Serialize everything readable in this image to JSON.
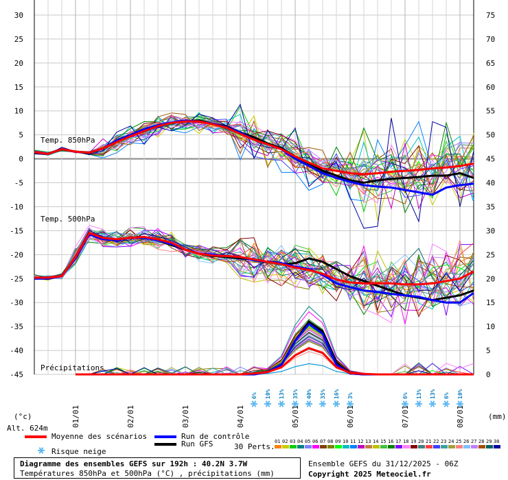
{
  "chart_data": {
    "type": "line",
    "title": "Diagramme des ensembles GEFS sur 192h : 40.2N 3.7W",
    "subtitle": "Températures 850hPa et 500hPa (°C) , précipitations (mm)",
    "run_info": "Ensemble GEFS du 31/12/2025 - 06Z",
    "copyright": "Copyright 2025 Meteociel.fr",
    "altitude": "Alt. 624m",
    "left_axis_unit": "(°c)",
    "right_axis_unit": "(mm)",
    "left_axis": {
      "range": [
        -45,
        30
      ],
      "ticks": [
        "30",
        "25",
        "20",
        "15",
        "10",
        "5",
        "0",
        "-5",
        "-10",
        "-15",
        "-20",
        "-25",
        "-30",
        "-35",
        "-40",
        "-45"
      ]
    },
    "right_axis": {
      "range": [
        0,
        75
      ],
      "ticks": [
        "75",
        "70",
        "65",
        "60",
        "55",
        "50",
        "45",
        "40",
        "35",
        "30",
        "25",
        "20",
        "15",
        "10",
        "5",
        "0"
      ]
    },
    "x_axis": {
      "hours_range": [
        0,
        192
      ],
      "day_labels": [
        "01/01",
        "02/01",
        "03/01",
        "04/01",
        "05/01",
        "06/01",
        "07/01",
        "08/01"
      ],
      "day_hours": [
        18,
        42,
        66,
        90,
        114,
        138,
        162,
        186
      ]
    },
    "panel_labels": {
      "t850": "Temp. 850hPa",
      "t500": "Temp. 500hPa",
      "precip": "Précipitations"
    },
    "snow_risk": {
      "hours": [
        96,
        102,
        108,
        114,
        120,
        126,
        132,
        138,
        144,
        162,
        168,
        174,
        180,
        186
      ],
      "labels": [
        "6%",
        "10%",
        "13%",
        "35%",
        "40%",
        "35%",
        "16%",
        "3%",
        "",
        "6%",
        "13%",
        "13%",
        "6%",
        "10%"
      ]
    },
    "grid": true,
    "series": [
      {
        "name": "Moyenne des scénarios",
        "color": "#ff0000",
        "hours": [
          0,
          6,
          12,
          18,
          24,
          30,
          36,
          42,
          48,
          54,
          60,
          66,
          72,
          78,
          84,
          90,
          96,
          102,
          108,
          114,
          120,
          126,
          132,
          138,
          144,
          150,
          156,
          162,
          168,
          174,
          180,
          186,
          192
        ],
        "t850": [
          1.4,
          1.0,
          2.0,
          1.5,
          1.3,
          2.2,
          3.5,
          4.7,
          5.8,
          6.8,
          7.5,
          7.8,
          7.8,
          7.2,
          6.5,
          5.2,
          4.0,
          3.0,
          2.0,
          0.5,
          -0.8,
          -2.0,
          -2.5,
          -3.0,
          -3.2,
          -3.0,
          -2.7,
          -2.5,
          -2.3,
          -2.0,
          -1.8,
          -1.5,
          -1.0
        ],
        "t500": [
          -24.8,
          -24.8,
          -24.5,
          -20.5,
          -15.5,
          -16.5,
          -16.8,
          -16.5,
          -16.3,
          -16.8,
          -17.5,
          -19.0,
          -19.8,
          -20.2,
          -20.3,
          -20.5,
          -21.0,
          -21.5,
          -22.0,
          -22.7,
          -23.2,
          -24.0,
          -25.2,
          -25.8,
          -26.0,
          -26.0,
          -26.0,
          -26.2,
          -26.2,
          -26.0,
          -25.5,
          -25.0,
          -23.5
        ],
        "precip": [
          null,
          null,
          null,
          0,
          0,
          0,
          0,
          0,
          0,
          0,
          0,
          0,
          0,
          0,
          0,
          0,
          0.2,
          0.5,
          1.5,
          4.0,
          5.5,
          4.5,
          1.5,
          0.3,
          0.1,
          0,
          0,
          0,
          0,
          0,
          0,
          0,
          0
        ]
      },
      {
        "name": "Run de contrôle",
        "color": "#0000ff",
        "hours": [
          0,
          6,
          12,
          18,
          24,
          30,
          36,
          42,
          48,
          54,
          60,
          66,
          72,
          78,
          84,
          90,
          96,
          102,
          108,
          114,
          120,
          126,
          132,
          138,
          144,
          150,
          156,
          162,
          168,
          174,
          180,
          186,
          192
        ],
        "t850": [
          1.3,
          1.0,
          2.0,
          1.5,
          1.3,
          2.2,
          3.8,
          5.0,
          6.2,
          7.0,
          7.6,
          8.0,
          7.8,
          7.3,
          6.6,
          5.5,
          4.0,
          3.0,
          2.0,
          0.0,
          -1.5,
          -3.0,
          -4.0,
          -4.8,
          -5.5,
          -5.8,
          -6.0,
          -6.5,
          -7.0,
          -7.5,
          -6.0,
          -5.5,
          -5.2
        ],
        "t500": [
          -25.0,
          -25.0,
          -24.5,
          -20.8,
          -15.8,
          -16.8,
          -17.0,
          -16.5,
          -16.5,
          -17.0,
          -17.8,
          -19.0,
          -19.8,
          -20.0,
          -20.3,
          -20.5,
          -21.2,
          -21.5,
          -21.8,
          -22.5,
          -23.0,
          -24.2,
          -26.0,
          -26.8,
          -27.5,
          -27.8,
          -28.2,
          -28.5,
          -28.8,
          -29.5,
          -30.0,
          -30.0,
          -28.0
        ],
        "precip": [
          null,
          null,
          null,
          0,
          0,
          0,
          0,
          0,
          0,
          0,
          0,
          0,
          0,
          0,
          0,
          0,
          0,
          0.5,
          2.0,
          7.0,
          10.5,
          8.5,
          2.0,
          0.2,
          0,
          0,
          0,
          0,
          0,
          0,
          0,
          0,
          0
        ]
      },
      {
        "name": "Run GFS",
        "color": "#000000",
        "hours": [
          0,
          6,
          12,
          18,
          24,
          30,
          36,
          42,
          48,
          54,
          60,
          66,
          72,
          78,
          84,
          90,
          96,
          102,
          108,
          114,
          120,
          126,
          132,
          138,
          144,
          150,
          156,
          162,
          168,
          174,
          180,
          186,
          192
        ],
        "t850": [
          1.2,
          1.0,
          2.0,
          1.5,
          1.2,
          2.2,
          3.5,
          4.8,
          6.0,
          7.0,
          7.5,
          7.8,
          8.0,
          7.3,
          6.8,
          5.5,
          4.5,
          3.2,
          2.2,
          0.5,
          -1.0,
          -2.5,
          -3.5,
          -4.5,
          -5.0,
          -4.5,
          -4.2,
          -4.0,
          -3.8,
          -3.5,
          -3.5,
          -3.0,
          -4.0
        ],
        "t500": [
          -25.0,
          -25.0,
          -24.5,
          -20.5,
          -15.5,
          -16.5,
          -17.0,
          -16.5,
          -16.3,
          -17.0,
          -18.0,
          -19.0,
          -19.8,
          -20.3,
          -20.5,
          -20.8,
          -21.0,
          -21.5,
          -22.0,
          -21.8,
          -20.8,
          -21.5,
          -23.0,
          -24.5,
          -25.5,
          -26.5,
          -27.5,
          -28.5,
          -29.0,
          -29.5,
          -29.0,
          -28.5,
          -27.5
        ],
        "precip": [
          null,
          null,
          null,
          0,
          0,
          0,
          0,
          0,
          0,
          0,
          0,
          0,
          0,
          0,
          0,
          0,
          0,
          0.5,
          2.0,
          7.0,
          11.0,
          9.0,
          2.5,
          0.2,
          0,
          0,
          0,
          0,
          0,
          0,
          0,
          0,
          0
        ]
      }
    ]
  },
  "legend": {
    "mean_label": "Moyenne des scénarios",
    "control_label": "Run de contrôle",
    "gfs_label": "Run GFS",
    "snow_label": "Risque neige",
    "perts_label": "30 Perts.",
    "pert_numbers": [
      "01",
      "02",
      "03",
      "04",
      "05",
      "06",
      "07",
      "08",
      "09",
      "10",
      "11",
      "12",
      "13",
      "14",
      "15",
      "16",
      "17",
      "18",
      "19",
      "20",
      "21",
      "22",
      "23",
      "24",
      "25",
      "26",
      "27",
      "28",
      "29",
      "30"
    ],
    "pert_colors": [
      "#ff8000",
      "#cccc00",
      "#00cc00",
      "#008080",
      "#8080ff",
      "#ff00ff",
      "#804000",
      "#808000",
      "#00ff00",
      "#00c0c0",
      "#0080ff",
      "#c000c0",
      "#c08040",
      "#c0c000",
      "#40c040",
      "#008000",
      "#8000ff",
      "#ff80ff",
      "#800000",
      "#408080",
      "#ff4040",
      "#4040ff",
      "#40a0a0",
      "#a0a040",
      "#ff8080",
      "#80c0ff",
      "#c080ff",
      "#a05000",
      "#006060",
      "#0000a0"
    ],
    "mean_color": "#ff0000",
    "control_color": "#0000ff",
    "gfs_color": "#000000",
    "snow_color": "#60b8f0"
  }
}
